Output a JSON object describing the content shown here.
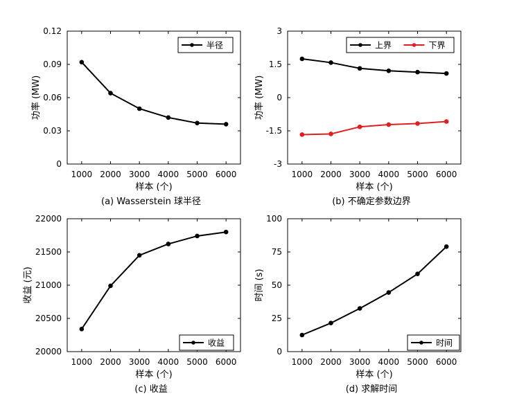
{
  "chart_data": [
    {
      "type": "line",
      "caption": "(a) Wasserstein 球半径",
      "xlabel": "样本 (个)",
      "ylabel": "功率 (MW)",
      "x": [
        1000,
        2000,
        3000,
        4000,
        5000,
        6000
      ],
      "xticks": [
        "1000",
        "2000",
        "3000",
        "4000",
        "5000",
        "6000"
      ],
      "ylim": [
        0,
        0.12
      ],
      "yticks": [
        0,
        0.03,
        0.06,
        0.09,
        0.12
      ],
      "ytick_labels": [
        "0",
        "0.03",
        "0.06",
        "0.09",
        "0.12"
      ],
      "legend_position": "top-right",
      "series": [
        {
          "name": "半径",
          "color": "#000000",
          "values": [
            0.092,
            0.064,
            0.05,
            0.042,
            0.037,
            0.036
          ]
        }
      ]
    },
    {
      "type": "line",
      "caption": "(b) 不确定参数边界",
      "xlabel": "样本 (个)",
      "ylabel": "功率 (MW)",
      "x": [
        1000,
        2000,
        3000,
        4000,
        5000,
        6000
      ],
      "xticks": [
        "1000",
        "2000",
        "3000",
        "4000",
        "5000",
        "6000"
      ],
      "ylim": [
        -3,
        3
      ],
      "yticks": [
        -3,
        -1.5,
        0,
        1.5,
        3
      ],
      "ytick_labels": [
        "-3",
        "-1.5",
        "0",
        "1.5",
        "3"
      ],
      "legend_position": "top-right",
      "series": [
        {
          "name": "上界",
          "color": "#000000",
          "values": [
            1.75,
            1.58,
            1.32,
            1.21,
            1.15,
            1.09
          ]
        },
        {
          "name": "下界",
          "color": "#e02020",
          "values": [
            -1.67,
            -1.64,
            -1.32,
            -1.22,
            -1.17,
            -1.08
          ]
        }
      ]
    },
    {
      "type": "line",
      "caption": "(c) 收益",
      "xlabel": "样本 (个)",
      "ylabel": "收益 (元)",
      "x": [
        1000,
        2000,
        3000,
        4000,
        5000,
        6000
      ],
      "xticks": [
        "1000",
        "2000",
        "3000",
        "4000",
        "5000",
        "6000"
      ],
      "ylim": [
        20000,
        22000
      ],
      "yticks": [
        20000,
        20500,
        21000,
        21500,
        22000
      ],
      "ytick_labels": [
        "20000",
        "20500",
        "21000",
        "21500",
        "22000"
      ],
      "legend_position": "bottom-right",
      "series": [
        {
          "name": "收益",
          "color": "#000000",
          "values": [
            20340,
            20990,
            21450,
            21620,
            21740,
            21800
          ]
        }
      ]
    },
    {
      "type": "line",
      "caption": "(d) 求解时间",
      "xlabel": "样本 (个)",
      "ylabel": "时间 (s)",
      "x": [
        1000,
        2000,
        3000,
        4000,
        5000,
        6000
      ],
      "xticks": [
        "1000",
        "2000",
        "3000",
        "4000",
        "5000",
        "6000"
      ],
      "ylim": [
        0,
        100
      ],
      "yticks": [
        0,
        25,
        50,
        75,
        100
      ],
      "ytick_labels": [
        "0",
        "25",
        "50",
        "75",
        "100"
      ],
      "legend_position": "bottom-right",
      "series": [
        {
          "name": "时间",
          "color": "#000000",
          "values": [
            12.5,
            21.5,
            32.5,
            44.5,
            58.5,
            79
          ]
        }
      ]
    }
  ]
}
